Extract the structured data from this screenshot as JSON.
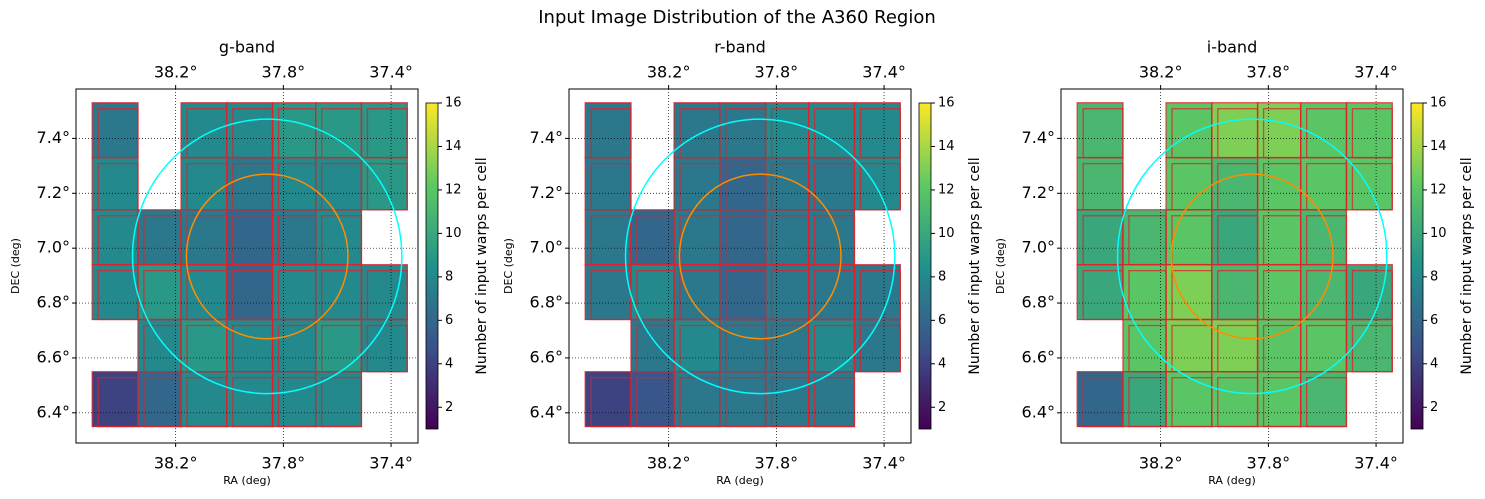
{
  "title": "Input Image Distribution of the A360 Region",
  "chart_data": [
    {
      "type": "heatmap",
      "title": "g-band",
      "xlabel": "RA (deg)",
      "ylabel": "DEC (deg)",
      "colorbar_label": "Number of input warps per cell",
      "xlim": [
        38.57,
        37.3
      ],
      "ylim": [
        6.29,
        7.58
      ],
      "xticks": [
        {
          "value": 38.2,
          "label": "38.2°"
        },
        {
          "value": 37.8,
          "label": "37.8°"
        },
        {
          "value": 37.4,
          "label": "37.4°"
        }
      ],
      "yticks": [
        {
          "value": 6.4,
          "label": "6.4°"
        },
        {
          "value": 6.6,
          "label": "6.6°"
        },
        {
          "value": 6.8,
          "label": "6.8°"
        },
        {
          "value": 7.0,
          "label": "7.0°"
        },
        {
          "value": 7.2,
          "label": "7.2°"
        },
        {
          "value": 7.4,
          "label": "7.4°"
        }
      ],
      "clim": [
        1,
        16
      ],
      "cticks": [
        2,
        4,
        6,
        8,
        10,
        12,
        14,
        16
      ],
      "grid": true,
      "x_edges": [
        38.51,
        38.34,
        38.18,
        38.01,
        37.84,
        37.68,
        37.51,
        37.34
      ],
      "y_edges": [
        7.53,
        7.33,
        7.14,
        6.94,
        6.74,
        6.55,
        6.35
      ],
      "values": [
        [
          7,
          null,
          8,
          8,
          9,
          9,
          9
        ],
        [
          8,
          null,
          8,
          7,
          8,
          8,
          9
        ],
        [
          8,
          7,
          7,
          6,
          7,
          8,
          null
        ],
        [
          8,
          9,
          8,
          6,
          8,
          8,
          8
        ],
        [
          null,
          8,
          9,
          8,
          8,
          9,
          8
        ],
        [
          4,
          6,
          8,
          8,
          8,
          8,
          null
        ]
      ],
      "circles": [
        {
          "center": [
            37.86,
            6.97
          ],
          "radius": 0.5,
          "color": "#00ffff"
        },
        {
          "center": [
            37.86,
            6.97
          ],
          "radius": 0.3,
          "color": "#ff8c00"
        }
      ]
    },
    {
      "type": "heatmap",
      "title": "r-band",
      "xlabel": "RA (deg)",
      "ylabel": "DEC (deg)",
      "colorbar_label": "Number of input warps per cell",
      "xlim": [
        38.57,
        37.3
      ],
      "ylim": [
        6.29,
        7.58
      ],
      "xticks": [
        {
          "value": 38.2,
          "label": "38.2°"
        },
        {
          "value": 37.8,
          "label": "37.8°"
        },
        {
          "value": 37.4,
          "label": "37.4°"
        }
      ],
      "yticks": [
        {
          "value": 6.4,
          "label": "6.4°"
        },
        {
          "value": 6.6,
          "label": "6.6°"
        },
        {
          "value": 6.8,
          "label": "6.8°"
        },
        {
          "value": 7.0,
          "label": "7.0°"
        },
        {
          "value": 7.2,
          "label": "7.2°"
        },
        {
          "value": 7.4,
          "label": "7.4°"
        }
      ],
      "clim": [
        1,
        16
      ],
      "cticks": [
        2,
        4,
        6,
        8,
        10,
        12,
        14,
        16
      ],
      "grid": true,
      "x_edges": [
        38.51,
        38.34,
        38.18,
        38.01,
        37.84,
        37.68,
        37.51,
        37.34
      ],
      "y_edges": [
        7.53,
        7.33,
        7.14,
        6.94,
        6.74,
        6.55,
        6.35
      ],
      "values": [
        [
          7,
          null,
          7,
          7,
          8,
          8,
          8
        ],
        [
          7,
          null,
          7,
          6,
          7,
          7,
          8
        ],
        [
          7,
          6,
          7,
          6,
          7,
          7,
          null
        ],
        [
          7,
          8,
          7,
          6,
          7,
          7,
          7
        ],
        [
          null,
          7,
          8,
          7,
          7,
          8,
          7
        ],
        [
          4,
          5,
          7,
          7,
          7,
          7,
          null
        ]
      ],
      "circles": [
        {
          "center": [
            37.86,
            6.97
          ],
          "radius": 0.5,
          "color": "#00ffff"
        },
        {
          "center": [
            37.86,
            6.97
          ],
          "radius": 0.3,
          "color": "#ff8c00"
        }
      ]
    },
    {
      "type": "heatmap",
      "title": "i-band",
      "xlabel": "RA (deg)",
      "ylabel": "DEC (deg)",
      "colorbar_label": "Number of input warps per cell",
      "xlim": [
        38.57,
        37.3
      ],
      "ylim": [
        6.29,
        7.58
      ],
      "xticks": [
        {
          "value": 38.2,
          "label": "38.2°"
        },
        {
          "value": 37.8,
          "label": "37.8°"
        },
        {
          "value": 37.4,
          "label": "37.4°"
        }
      ],
      "yticks": [
        {
          "value": 6.4,
          "label": "6.4°"
        },
        {
          "value": 6.6,
          "label": "6.6°"
        },
        {
          "value": 6.8,
          "label": "6.8°"
        },
        {
          "value": 7.0,
          "label": "7.0°"
        },
        {
          "value": 7.2,
          "label": "7.2°"
        },
        {
          "value": 7.4,
          "label": "7.4°"
        }
      ],
      "clim": [
        1,
        16
      ],
      "cticks": [
        2,
        4,
        6,
        8,
        10,
        12,
        14,
        16
      ],
      "grid": true,
      "x_edges": [
        38.51,
        38.34,
        38.18,
        38.01,
        37.84,
        37.68,
        37.51,
        37.34
      ],
      "y_edges": [
        7.53,
        7.33,
        7.14,
        6.94,
        6.74,
        6.55,
        6.35
      ],
      "values": [
        [
          11,
          null,
          12,
          13,
          13,
          12,
          12
        ],
        [
          11,
          null,
          12,
          11,
          12,
          12,
          12
        ],
        [
          10,
          11,
          12,
          10,
          12,
          11,
          null
        ],
        [
          10,
          12,
          13,
          11,
          12,
          11,
          10
        ],
        [
          null,
          12,
          13,
          13,
          12,
          12,
          11
        ],
        [
          6,
          10,
          12,
          12,
          12,
          11,
          null
        ]
      ],
      "circles": [
        {
          "center": [
            37.86,
            6.97
          ],
          "radius": 0.5,
          "color": "#00ffff"
        },
        {
          "center": [
            37.86,
            6.97
          ],
          "radius": 0.3,
          "color": "#ff8c00"
        }
      ]
    }
  ]
}
